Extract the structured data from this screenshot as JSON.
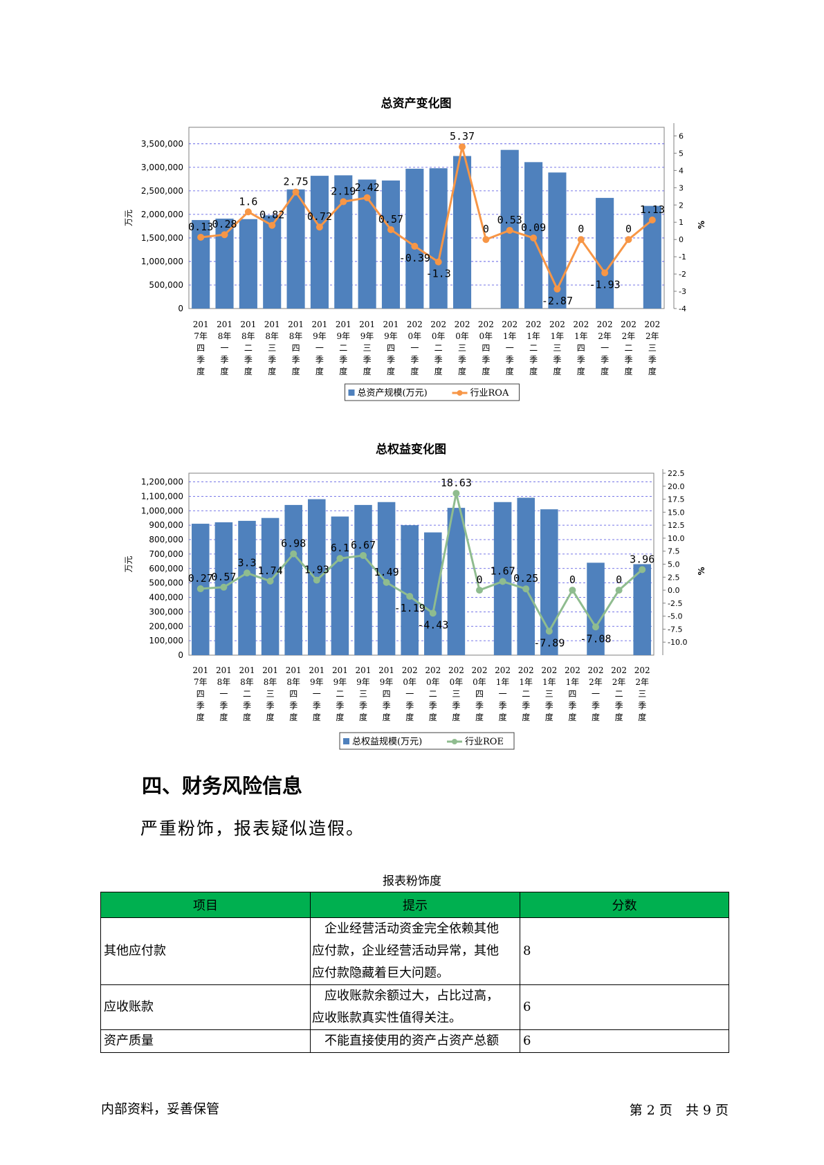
{
  "chart_data": [
    {
      "type": "bar+line",
      "title": "总资产变化图",
      "ylabel_left": "万元",
      "ylabel_right": "%",
      "left_ticks": [
        "3,500,000",
        "3,000,000",
        "2,500,000",
        "2,000,000",
        "1,500,000",
        "1,000,000",
        "500,000",
        "0"
      ],
      "right_ticks": [
        "6",
        "5",
        "4",
        "3",
        "2",
        "1",
        "0",
        "-1",
        "-2",
        "-3",
        "-4"
      ],
      "ylim_left": [
        0,
        3850000
      ],
      "ylim_right": [
        -4,
        6.5
      ],
      "grid": true,
      "legend_position": "bottom",
      "categories": [
        [
          "201",
          "7年",
          "四",
          "季",
          "度"
        ],
        [
          "201",
          "8年",
          "一",
          "季",
          "度"
        ],
        [
          "201",
          "8年",
          "二",
          "季",
          "度"
        ],
        [
          "201",
          "8年",
          "三",
          "季",
          "度"
        ],
        [
          "201",
          "8年",
          "四",
          "季",
          "度"
        ],
        [
          "201",
          "9年",
          "一",
          "季",
          "度"
        ],
        [
          "201",
          "9年",
          "二",
          "季",
          "度"
        ],
        [
          "201",
          "9年",
          "三",
          "季",
          "度"
        ],
        [
          "201",
          "9年",
          "四",
          "季",
          "度"
        ],
        [
          "202",
          "0年",
          "一",
          "季",
          "度"
        ],
        [
          "202",
          "0年",
          "二",
          "季",
          "度"
        ],
        [
          "202",
          "0年",
          "三",
          "季",
          "度"
        ],
        [
          "202",
          "0年",
          "四",
          "季",
          "度"
        ],
        [
          "202",
          "1年",
          "一",
          "季",
          "度"
        ],
        [
          "202",
          "1年",
          "二",
          "季",
          "度"
        ],
        [
          "202",
          "1年",
          "三",
          "季",
          "度"
        ],
        [
          "202",
          "1年",
          "四",
          "季",
          "度"
        ],
        [
          "202",
          "2年",
          "一",
          "季",
          "度"
        ],
        [
          "202",
          "2年",
          "二",
          "季",
          "度"
        ],
        [
          "202",
          "2年",
          "三",
          "季",
          "度"
        ]
      ],
      "series": [
        {
          "name": "总资产规模(万元)",
          "kind": "bar",
          "color": "#4f81bd",
          "values": [
            1880000,
            1910000,
            1900000,
            1980000,
            2530000,
            2820000,
            2830000,
            2740000,
            2720000,
            2970000,
            2980000,
            3240000,
            null,
            3370000,
            3110000,
            2890000,
            null,
            2350000,
            null,
            2180000
          ]
        },
        {
          "name": "行业ROA",
          "kind": "line",
          "color": "#f79646",
          "values": [
            0.13,
            0.28,
            1.6,
            0.82,
            2.75,
            0.72,
            2.19,
            2.42,
            0.57,
            -0.39,
            -1.3,
            5.37,
            0,
            0.53,
            0.09,
            -2.87,
            0,
            -1.93,
            0,
            1.13
          ],
          "labels": [
            "0.13",
            "0.28",
            "1.6",
            "0.82",
            "2.75",
            "0.72",
            "2.19",
            "2.42",
            "0.57",
            "-0.39",
            "-1.3",
            "5.37",
            "0",
            "0.53",
            "0.09",
            "-2.87",
            "0",
            "-1.93",
            "0",
            "1.13"
          ]
        }
      ]
    },
    {
      "type": "bar+line",
      "title": "总权益变化图",
      "ylabel_left": "万元",
      "ylabel_right": "%",
      "left_ticks": [
        "1,200,000",
        "1,100,000",
        "1,000,000",
        "900,000",
        "800,000",
        "700,000",
        "600,000",
        "500,000",
        "400,000",
        "300,000",
        "200,000",
        "100,000",
        "0"
      ],
      "right_ticks": [
        "22.5",
        "20.0",
        "17.5",
        "15.0",
        "12.5",
        "10.0",
        "7.5",
        "5.0",
        "2.5",
        "0.0",
        "-2.5",
        "-5.0",
        "-7.5",
        "-10.0"
      ],
      "ylim_left": [
        0,
        1260000
      ],
      "ylim_right": [
        -12.5,
        22.5
      ],
      "grid": true,
      "legend_position": "bottom",
      "categories": [
        [
          "201",
          "7年",
          "四",
          "季",
          "度"
        ],
        [
          "201",
          "8年",
          "一",
          "季",
          "度"
        ],
        [
          "201",
          "8年",
          "二",
          "季",
          "度"
        ],
        [
          "201",
          "8年",
          "三",
          "季",
          "度"
        ],
        [
          "201",
          "8年",
          "四",
          "季",
          "度"
        ],
        [
          "201",
          "9年",
          "一",
          "季",
          "度"
        ],
        [
          "201",
          "9年",
          "二",
          "季",
          "度"
        ],
        [
          "201",
          "9年",
          "三",
          "季",
          "度"
        ],
        [
          "201",
          "9年",
          "四",
          "季",
          "度"
        ],
        [
          "202",
          "0年",
          "一",
          "季",
          "度"
        ],
        [
          "202",
          "0年",
          "二",
          "季",
          "度"
        ],
        [
          "202",
          "0年",
          "三",
          "季",
          "度"
        ],
        [
          "202",
          "0年",
          "四",
          "季",
          "度"
        ],
        [
          "202",
          "1年",
          "一",
          "季",
          "度"
        ],
        [
          "202",
          "1年",
          "二",
          "季",
          "度"
        ],
        [
          "202",
          "1年",
          "三",
          "季",
          "度"
        ],
        [
          "202",
          "1年",
          "四",
          "季",
          "度"
        ],
        [
          "202",
          "2年",
          "一",
          "季",
          "度"
        ],
        [
          "202",
          "2年",
          "二",
          "季",
          "度"
        ],
        [
          "202",
          "2年",
          "三",
          "季",
          "度"
        ]
      ],
      "series": [
        {
          "name": "总权益规模(万元)",
          "kind": "bar",
          "color": "#4f81bd",
          "values": [
            910000,
            920000,
            930000,
            950000,
            1040000,
            1080000,
            960000,
            1040000,
            1060000,
            900000,
            850000,
            1020000,
            null,
            1060000,
            1090000,
            1010000,
            null,
            640000,
            null,
            630000
          ]
        },
        {
          "name": "行业ROE",
          "kind": "line",
          "color": "#8fbc8f",
          "values": [
            0.27,
            0.57,
            3.3,
            1.74,
            6.98,
            1.93,
            6.1,
            6.67,
            1.49,
            -1.19,
            -4.43,
            18.63,
            0,
            1.67,
            0.25,
            -7.89,
            0,
            -7.08,
            0,
            3.96
          ],
          "labels": [
            "0.27",
            "0.57",
            "3.3",
            "1.74",
            "6.98",
            "1.93",
            "6.1",
            "6.67",
            "1.49",
            "-1.19",
            "-4.43",
            "18.63",
            "0",
            "1.67",
            "0.25",
            "-7.89",
            "0",
            "-7.08",
            "0",
            "3.96"
          ]
        }
      ]
    }
  ],
  "section": {
    "heading": "四、财务风险信息",
    "summary": "严重粉饰，报表疑似造假。"
  },
  "table": {
    "caption": "报表粉饰度",
    "headers": [
      "项目",
      "提示",
      "分数"
    ],
    "header_color": "#00b050",
    "rows": [
      {
        "item": "其他应付款",
        "hint": [
          "　企业经营活动资金完全依赖其他",
          "应付款，企业经营活动异常，其他",
          "应付款隐藏着巨大问题。"
        ],
        "score": "8"
      },
      {
        "item": "应收账款",
        "hint": [
          "　应收账款余额过大，占比过高，",
          "应收账款真实性值得关注。"
        ],
        "score": "6"
      },
      {
        "item": "资产质量",
        "hint": [
          "　不能直接使用的资产占资产总额"
        ],
        "score": "6"
      }
    ]
  },
  "footer": {
    "left": "内部资料，妥善保管",
    "right": "第 2 页　共 9 页"
  }
}
